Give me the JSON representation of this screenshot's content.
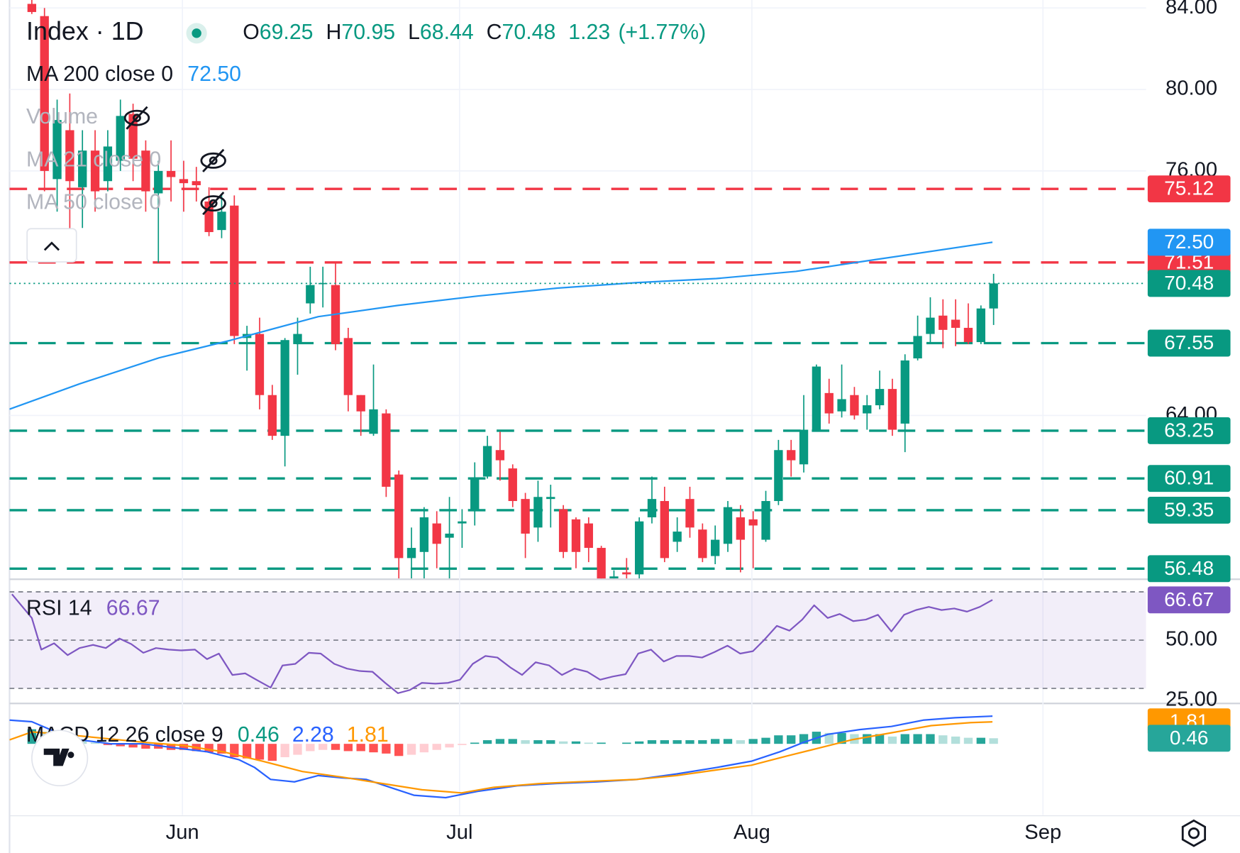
{
  "chart_data": [
    {
      "type": "candlestick",
      "title": "Index · 1D",
      "legend": [
        {
          "key": "O",
          "value": 69.25
        },
        {
          "key": "H",
          "value": 70.95
        },
        {
          "key": "L",
          "value": 68.44
        },
        {
          "key": "C",
          "value": 70.48
        }
      ],
      "change": 1.23,
      "change_pct": {
        "value": 1.77,
        "label": "(+1.77%)"
      },
      "up_color": "#089981",
      "down_color": "#f23645",
      "x": [
        0,
        1,
        2,
        3,
        4,
        5,
        6,
        7,
        8,
        9,
        10,
        11,
        12,
        13,
        14,
        15,
        16,
        17,
        18,
        19,
        20,
        21,
        22,
        23,
        24,
        25,
        26,
        27,
        28,
        29,
        30,
        31,
        32,
        33,
        34,
        35,
        36,
        37,
        38,
        39,
        40,
        41,
        42,
        43,
        44,
        45,
        46,
        47,
        48,
        49,
        50,
        51,
        52,
        53,
        54,
        55,
        56,
        57,
        58,
        59,
        60,
        61,
        62,
        63,
        64,
        65,
        66,
        67,
        68,
        69,
        70,
        71,
        72,
        73,
        74,
        75,
        76
      ],
      "open": [
        84.2,
        83.6,
        75.6,
        78.0,
        75.2,
        77.0,
        75.5,
        76.5,
        78.8,
        77.0,
        74.9,
        76.0,
        75.6,
        75.5,
        74.5,
        73.1,
        74.3,
        67.8,
        68.0,
        65.0,
        63.0,
        67.5,
        69.5,
        70.45,
        70.4,
        67.8,
        65.0,
        63.1,
        64.1,
        61.1,
        57.0,
        57.3,
        58.7,
        58.0,
        58.7,
        59.3,
        61.0,
        62.3,
        61.4,
        59.9,
        58.5,
        59.9,
        59.4,
        58.9,
        58.7,
        57.5,
        56.0,
        56.3,
        56.2,
        59.0,
        59.8,
        57.8,
        59.9,
        58.4,
        57.1,
        57.7,
        59.0,
        58.9,
        57.9,
        59.8,
        62.3,
        61.6,
        63.3,
        65.1,
        64.2,
        65.0,
        64.1,
        64.5,
        65.3,
        63.6,
        66.8,
        68.0,
        68.9,
        68.7,
        68.3,
        67.6,
        69.25
      ],
      "high": [
        84.4,
        84.0,
        79.5,
        79.8,
        78.0,
        78.0,
        78.0,
        79.5,
        79.3,
        77.5,
        76.5,
        77.5,
        76.5,
        76.2,
        75.2,
        74.8,
        74.8,
        68.4,
        68.8,
        65.5,
        67.8,
        68.8,
        71.3,
        71.3,
        71.5,
        68.3,
        65.0,
        66.5,
        64.3,
        61.3,
        58.5,
        59.5,
        59.3,
        60.0,
        59.4,
        61.7,
        63.0,
        63.2,
        61.6,
        60.2,
        60.8,
        60.6,
        59.6,
        59.0,
        59.0,
        57.6,
        56.4,
        57.0,
        59.0,
        61.0,
        60.5,
        59.0,
        60.5,
        58.7,
        58.6,
        59.8,
        59.6,
        59.3,
        60.3,
        62.8,
        62.8,
        65.0,
        66.5,
        65.8,
        66.5,
        65.4,
        65.0,
        66.2,
        65.8,
        67.0,
        68.9,
        69.8,
        69.7,
        69.7,
        69.5,
        69.4,
        70.95
      ],
      "low": [
        83.7,
        75.0,
        74.0,
        73.0,
        73.2,
        74.0,
        75.0,
        76.0,
        75.5,
        74.0,
        71.5,
        74.5,
        74.0,
        74.5,
        72.8,
        72.7,
        67.5,
        66.2,
        64.3,
        62.8,
        61.5,
        66.0,
        69.0,
        69.3,
        67.2,
        64.2,
        63.0,
        63.0,
        60.0,
        56.0,
        56.0,
        56.0,
        56.5,
        56.0,
        57.5,
        58.6,
        60.9,
        60.8,
        59.5,
        57.0,
        57.8,
        58.5,
        57.0,
        56.5,
        56.8,
        55.5,
        55.5,
        56.0,
        56.0,
        58.7,
        56.8,
        57.3,
        58.0,
        56.8,
        56.7,
        57.3,
        56.3,
        56.5,
        57.8,
        59.6,
        61.0,
        61.2,
        63.2,
        63.6,
        63.9,
        63.8,
        63.3,
        64.3,
        63.0,
        62.2,
        66.7,
        67.5,
        67.3,
        67.4,
        67.5,
        67.5,
        68.44
      ],
      "close": [
        83.8,
        76.0,
        78.5,
        75.5,
        77.0,
        75.0,
        77.2,
        78.7,
        76.6,
        75.0,
        76.0,
        75.7,
        75.4,
        75.3,
        73.0,
        74.0,
        67.9,
        68.0,
        65.0,
        63.0,
        67.7,
        68.0,
        70.4,
        70.5,
        67.5,
        65.0,
        64.2,
        64.3,
        60.5,
        57.0,
        57.5,
        59.0,
        57.7,
        58.2,
        58.8,
        60.9,
        62.5,
        61.8,
        59.8,
        58.2,
        60.0,
        60.0,
        57.3,
        57.3,
        57.5,
        55.8,
        56.1,
        56.2,
        58.8,
        59.9,
        57.0,
        58.3,
        58.5,
        57.0,
        57.9,
        59.5,
        57.9,
        58.6,
        59.8,
        62.3,
        61.8,
        63.3,
        66.4,
        64.1,
        64.8,
        64.0,
        64.5,
        65.3,
        63.3,
        66.7,
        67.9,
        68.8,
        68.2,
        68.3,
        67.6,
        69.25,
        70.48
      ],
      "indicators": [
        {
          "name": "MA 200 close 0",
          "color": "#2196f3",
          "x": [
            -1.76,
            3.77,
            10.06,
            15.72,
            22.64,
            28.93,
            35.22,
            41.51,
            47.8,
            54.09,
            60.38,
            66.67,
            75.91
          ],
          "values": [
            64.31,
            65.55,
            66.83,
            67.69,
            68.85,
            69.4,
            69.86,
            70.25,
            70.52,
            70.72,
            71.07,
            71.65,
            72.5
          ],
          "value_labels": [
            null,
            null,
            null,
            null,
            null,
            null,
            null,
            null,
            null,
            null,
            null,
            null,
            "72.50"
          ]
        }
      ],
      "hidden_indicators": [
        "Volume",
        "MA 21 close 0",
        "MA 50 close 0"
      ],
      "levels": [
        {
          "value": 75.12,
          "color": "#f23645"
        },
        {
          "value": 71.51,
          "color": "#f23645"
        },
        {
          "value": 67.55,
          "color": "#089981"
        },
        {
          "value": 63.25,
          "color": "#089981"
        },
        {
          "value": 60.91,
          "color": "#089981"
        },
        {
          "value": 59.35,
          "color": "#089981"
        },
        {
          "value": 56.48,
          "color": "#089981"
        }
      ],
      "xlim": [
        -1.76,
        88.05
      ],
      "ylim": [
        56.04,
        84.39
      ],
      "xticks": [
        {
          "value": 11.9,
          "label": "Jun"
        },
        {
          "value": 33.8,
          "label": "Jul"
        },
        {
          "value": 56.9,
          "label": "Aug"
        },
        {
          "value": 79.9,
          "label": "Sep"
        }
      ],
      "yticks": [
        {
          "value": 84,
          "label": "84.00"
        },
        {
          "value": 80,
          "label": "80.00"
        },
        {
          "value": 76,
          "label": "76.00"
        },
        {
          "value": 64,
          "label": "64.00"
        }
      ],
      "grid": true
    },
    {
      "type": "line",
      "series": [
        {
          "name": "RSI 14",
          "color": "#7e57c2",
          "x": [
            -1.57,
            0,
            0.75,
            1.76,
            2.83,
            3.77,
            4.84,
            5.85,
            6.92,
            7.86,
            8.81,
            9.81,
            10.82,
            11.82,
            12.89,
            13.84,
            14.78,
            15.85,
            16.86,
            17.74,
            18.87,
            19.81,
            20.82,
            21.89,
            22.83,
            23.9,
            24.91,
            25.91,
            26.92,
            27.92,
            28.93,
            29.87,
            30.82,
            31.89,
            32.89,
            33.84,
            34.84,
            35.85,
            36.79,
            37.86,
            38.74,
            39.81,
            40.88,
            41.89,
            42.89,
            43.9,
            44.91,
            45.91,
            46.92,
            47.92,
            48.93,
            49.94,
            50.94,
            51.95,
            52.96,
            53.96,
            54.97,
            55.97,
            56.98,
            57.86,
            58.87,
            59.87,
            60.88,
            61.82,
            62.89,
            63.84,
            64.91,
            65.91,
            66.86,
            67.92,
            68.93,
            69.87,
            70.88,
            71.89,
            72.89,
            73.9,
            74.91,
            75.91
          ],
          "values": [
            69.02,
            59.18,
            46.07,
            48.69,
            43.77,
            46.72,
            48.03,
            46.72,
            50.66,
            48.36,
            44.75,
            46.72,
            46.07,
            45.74,
            46.07,
            42.13,
            44.43,
            35.57,
            36.23,
            33.61,
            30.33,
            39.51,
            40.16,
            44.75,
            44.43,
            40.16,
            38.2,
            37.21,
            36.89,
            32.3,
            28.03,
            29.34,
            32.3,
            31.97,
            32.3,
            33.61,
            40.16,
            43.44,
            42.79,
            38.52,
            35.57,
            40.82,
            39.51,
            35.57,
            38.2,
            36.89,
            33.61,
            34.92,
            35.9,
            44.43,
            46.07,
            41.15,
            43.44,
            43.44,
            42.79,
            45.08,
            47.7,
            44.43,
            45.41,
            50,
            55.9,
            53.93,
            58.52,
            64.43,
            59.18,
            60.82,
            57.87,
            58.52,
            60.49,
            53.61,
            60.49,
            62.46,
            63.77,
            62.46,
            63.11,
            61.8,
            63.77,
            66.67
          ]
        }
      ],
      "levels": [
        70,
        50,
        30
      ],
      "band_color": "#7e57c2",
      "ylim": [
        24.1,
        74.9
      ],
      "yticks": [
        {
          "value": 50,
          "label": "50.00"
        },
        {
          "value": 25,
          "label": "25.00"
        }
      ]
    },
    {
      "type": "macd",
      "title": "MACD 12 26 close 9",
      "histogram": {
        "colors": [
          "#26a69a",
          "#b2dfdb",
          "#ff5252",
          "#ffcdd2"
        ],
        "x": [
          0,
          1,
          2,
          3,
          4,
          5,
          6,
          7,
          8,
          9,
          10,
          11,
          12,
          13,
          14,
          15,
          16,
          17,
          18,
          19,
          20,
          21,
          22,
          23,
          24,
          25,
          26,
          27,
          28,
          29,
          30,
          31,
          32,
          33,
          34,
          35,
          36,
          37,
          38,
          39,
          40,
          41,
          42,
          43,
          44,
          45,
          46,
          47,
          48,
          49,
          50,
          51,
          52,
          53,
          54,
          55,
          56,
          57,
          58,
          59,
          60,
          61,
          62,
          63,
          64,
          65,
          66,
          67,
          68,
          69,
          70,
          71,
          72,
          73,
          74,
          75,
          76
        ],
        "values": [
          1.2,
          1.0,
          0.6,
          0.4,
          0.2,
          0.1,
          -0.1,
          -0.2,
          -0.3,
          -0.4,
          -0.4,
          -0.5,
          -0.5,
          -0.6,
          -0.7,
          -0.8,
          -1.1,
          -1.2,
          -1.3,
          -1.4,
          -1.1,
          -0.9,
          -0.6,
          -0.5,
          -0.5,
          -0.6,
          -0.6,
          -0.7,
          -0.8,
          -1.0,
          -0.9,
          -0.7,
          -0.5,
          -0.3,
          -0.1,
          0.1,
          0.3,
          0.4,
          0.4,
          0.3,
          0.3,
          0.3,
          0.2,
          0.2,
          0.1,
          0.1,
          0.0,
          0.1,
          0.2,
          0.3,
          0.3,
          0.3,
          0.3,
          0.3,
          0.4,
          0.4,
          0.3,
          0.4,
          0.5,
          0.7,
          0.7,
          0.8,
          1.0,
          0.9,
          0.9,
          0.8,
          0.8,
          0.8,
          0.6,
          0.8,
          0.8,
          0.8,
          0.7,
          0.6,
          0.5,
          0.5,
          0.46
        ]
      },
      "series": [
        {
          "color": "#2962ff",
          "x": [
            -1.76,
            0,
            1.89,
            3.77,
            6.29,
            8.81,
            11.32,
            13.84,
            16.35,
            17.61,
            18.87,
            20.75,
            22.64,
            24.53,
            26.42,
            28.3,
            30.19,
            32.7,
            35.22,
            38.36,
            41.51,
            44.65,
            47.8,
            50.94,
            54.09,
            56.86,
            59.12,
            61.01,
            62.89,
            65.41,
            67.92,
            70.44,
            72.96,
            75.91
          ],
          "values": [
            1.95,
            1.82,
            0.98,
            0.33,
            0,
            0,
            -0.33,
            -0.65,
            -1.3,
            -1.95,
            -2.93,
            -3.13,
            -2.61,
            -2.8,
            -2.93,
            -3.58,
            -4.23,
            -4.43,
            -3.91,
            -3.45,
            -3.26,
            -3.13,
            -2.93,
            -2.48,
            -1.95,
            -1.43,
            -0.65,
            0.13,
            0.78,
            1.17,
            1.43,
            1.95,
            2.15,
            2.28
          ]
        },
        {
          "color": "#ff9800",
          "x": [
            -1.76,
            0,
            2.52,
            5.66,
            8.81,
            11.95,
            15.09,
            18.24,
            21.38,
            24.53,
            27.67,
            30.82,
            33.96,
            36.48,
            40.25,
            44.65,
            47.8,
            50.94,
            54.09,
            56.86,
            59.75,
            62.26,
            64.78,
            67.92,
            71.07,
            74.21,
            75.91
          ],
          "values": [
            0.33,
            0.98,
            0.78,
            0.46,
            0.13,
            -0.13,
            -0.65,
            -1.43,
            -2.28,
            -2.74,
            -3.26,
            -3.78,
            -4.04,
            -3.58,
            -3.26,
            -3.06,
            -2.93,
            -2.61,
            -2.15,
            -1.76,
            -0.98,
            -0.33,
            0.33,
            0.91,
            1.5,
            1.75,
            1.81
          ]
        }
      ],
      "ylim": [
        -5.86,
        3.26
      ]
    }
  ]
}
